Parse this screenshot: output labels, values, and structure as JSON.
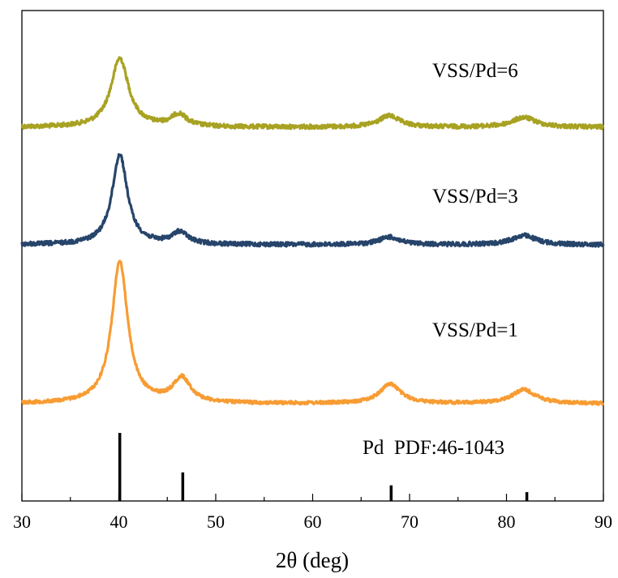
{
  "chart_data": {
    "type": "line",
    "xlabel": "2θ (deg)",
    "ylabel": "",
    "xlim": [
      30,
      90
    ],
    "xticks": [
      30,
      40,
      50,
      60,
      70,
      80,
      90
    ],
    "y_axis_ticks_shown": false,
    "grid": false,
    "legend": "none",
    "series": [
      {
        "name": "VSS/Pd=6",
        "color": "#a8a222",
        "peaks": [
          {
            "x": 40.1,
            "height": 0.85
          },
          {
            "x": 46.2,
            "height": 0.15
          },
          {
            "x": 67.9,
            "height": 0.14
          },
          {
            "x": 81.8,
            "height": 0.12
          }
        ]
      },
      {
        "name": "VSS/Pd=3",
        "color": "#27456b",
        "peaks": [
          {
            "x": 40.1,
            "height": 1.07
          },
          {
            "x": 46.3,
            "height": 0.14
          },
          {
            "x": 67.9,
            "height": 0.09
          },
          {
            "x": 81.8,
            "height": 0.11
          }
        ]
      },
      {
        "name": "VSS/Pd=1",
        "color": "#f79c33",
        "peaks": [
          {
            "x": 40.1,
            "height": 1.75
          },
          {
            "x": 46.5,
            "height": 0.3
          },
          {
            "x": 68.0,
            "height": 0.24
          },
          {
            "x": 81.8,
            "height": 0.17
          }
        ]
      }
    ],
    "reference": {
      "label": "Pd  PDF:46-1043",
      "color": "#000000",
      "lines": [
        {
          "x": 40.1,
          "intensity": 1.0
        },
        {
          "x": 46.6,
          "intensity": 0.42
        },
        {
          "x": 68.1,
          "intensity": 0.23
        },
        {
          "x": 82.1,
          "intensity": 0.13
        }
      ]
    }
  }
}
